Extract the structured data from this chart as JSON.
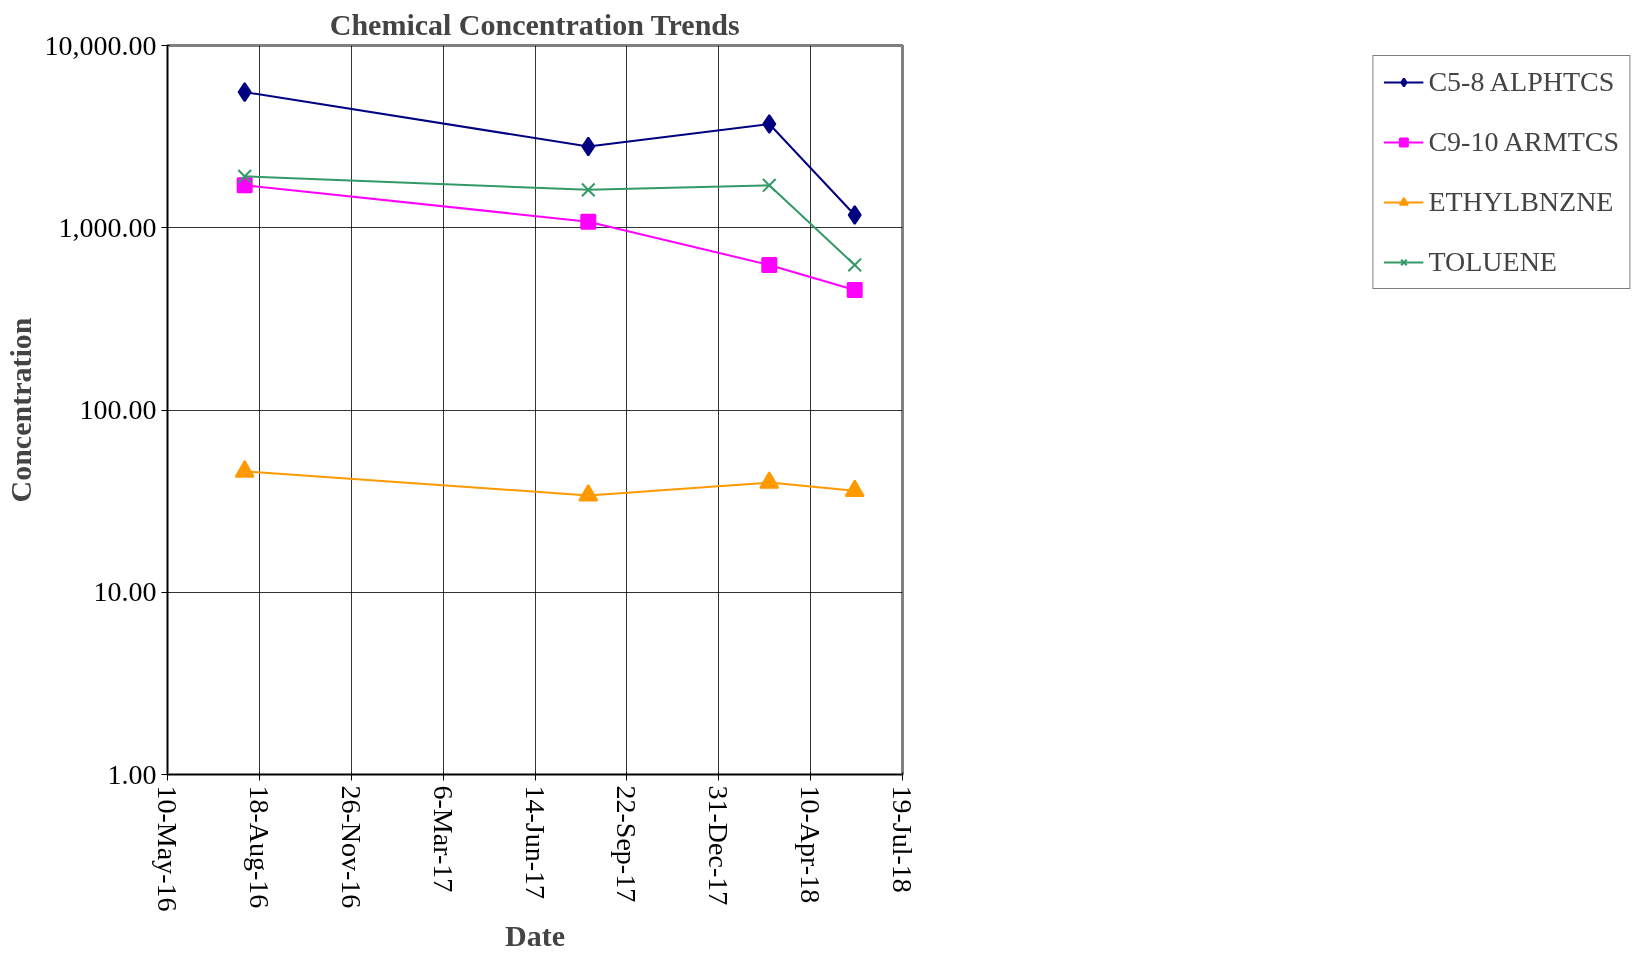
{
  "chart_data": {
    "type": "line",
    "title": "Chemical Concentration Trends",
    "xlabel": "Date",
    "ylabel": "Concentration",
    "x": [
      "2016-08-02",
      "2017-08-11",
      "2018-02-24",
      "2018-05-28"
    ],
    "series": [
      {
        "name": "C5-8 ALPHTCS",
        "color": "#000080",
        "marker": "diamond",
        "values": [
          5550,
          2790,
          3710,
          1175
        ]
      },
      {
        "name": "C9-10 ARMTCS",
        "color": "#ff00ff",
        "marker": "square",
        "values": [
          1710,
          1080,
          625,
          455
        ]
      },
      {
        "name": "ETHYLBNZNE",
        "color": "#ff9900",
        "marker": "triangle",
        "values": [
          46,
          34,
          40,
          36
        ]
      },
      {
        "name": "TOLUENE",
        "color": "#339966",
        "marker": "cross",
        "values": [
          1915,
          1615,
          1710,
          625
        ]
      }
    ],
    "log": true,
    "ylim": [
      1,
      10000
    ],
    "yticks": [
      {
        "value": 1,
        "label": "1.00"
      },
      {
        "value": 10,
        "label": "10.00"
      },
      {
        "value": 100,
        "label": "100.00"
      },
      {
        "value": 1000,
        "label": "1,000.00"
      },
      {
        "value": 10000,
        "label": "10,000.00"
      }
    ],
    "xlim": [
      "2016-05-10",
      "2018-07-19"
    ],
    "xticks": [
      {
        "value": "2016-05-10",
        "label": "10-May-16"
      },
      {
        "value": "2016-08-18",
        "label": "18-Aug-16"
      },
      {
        "value": "2016-11-26",
        "label": "26-Nov-16"
      },
      {
        "value": "2017-03-06",
        "label": "6-Mar-17"
      },
      {
        "value": "2017-06-14",
        "label": "14-Jun-17"
      },
      {
        "value": "2017-09-22",
        "label": "22-Sep-17"
      },
      {
        "value": "2017-12-31",
        "label": "31-Dec-17"
      },
      {
        "value": "2018-04-10",
        "label": "10-Apr-18"
      },
      {
        "value": "2018-07-19",
        "label": "19-Jul-18"
      }
    ],
    "grid": true,
    "legend": "right",
    "line_style": "solid"
  }
}
